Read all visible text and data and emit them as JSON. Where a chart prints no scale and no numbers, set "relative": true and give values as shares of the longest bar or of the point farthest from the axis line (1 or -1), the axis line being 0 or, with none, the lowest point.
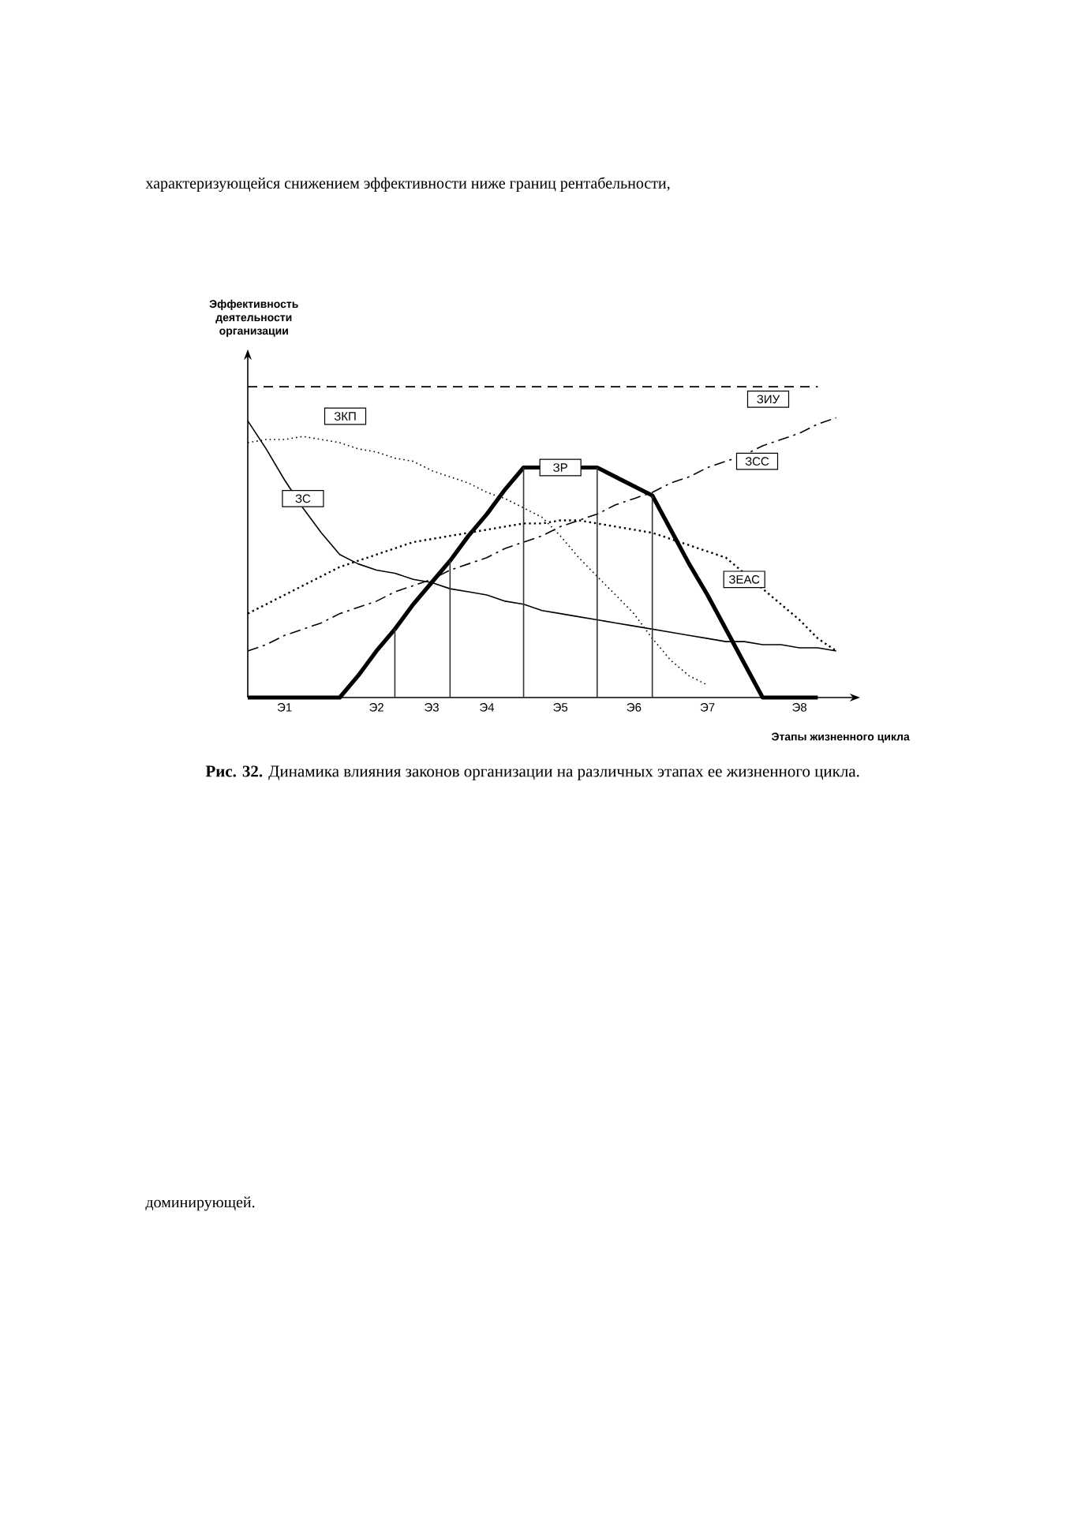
{
  "chart_data": {
    "type": "line",
    "relative": true,
    "ylabel": "Эффективность деятельности организации",
    "xlabel": "Этапы жизненного цикла",
    "annotations": [
      "характеризующейся снижением эффективности ниже границ рентабельности,",
      "**Рис. 32.** Динамика влияния законов организации на различных этапах ее жизненного цикла.",
      "доминирующей."
    ],
    "categories": [
      null,
      null,
      "Э1",
      null,
      null,
      null,
      null,
      "Э2",
      null,
      null,
      "Э3",
      null,
      null,
      "Э4",
      null,
      null,
      null,
      "Э5",
      null,
      null,
      null,
      "Э6",
      null,
      null,
      null,
      "Э7",
      null,
      null,
      null,
      null,
      "Э8",
      null,
      null
    ],
    "marker": "none",
    "series": [
      {
        "name": "ЗР",
        "color": "#000000",
        "line_style": "solid",
        "values": [
          0,
          0,
          0,
          0,
          0,
          0,
          0.07,
          0.15,
          0.22,
          0.3,
          0.37,
          0.44,
          0.52,
          0.59,
          0.67,
          0.74,
          0.74,
          0.74,
          0.74,
          0.74,
          0.71,
          0.68,
          0.65,
          0.54,
          0.43,
          0.33,
          0.22,
          0.11,
          0,
          0,
          0,
          0,
          null
        ]
      },
      {
        "name": "ЗИУ",
        "color": "#000000",
        "line_style": "dashed",
        "values": [
          1,
          1,
          1,
          1,
          1,
          1,
          1,
          1,
          1,
          1,
          1,
          1,
          1,
          1,
          1,
          1,
          1,
          1,
          1,
          1,
          1,
          1,
          1,
          1,
          1,
          1,
          1,
          1,
          1,
          1,
          1,
          1,
          null
        ]
      },
      {
        "name": "ЗСС",
        "color": "#000000",
        "line_style": "dashdot",
        "values": [
          0.15,
          0.17,
          0.2,
          0.22,
          0.24,
          0.27,
          0.29,
          0.31,
          0.34,
          0.36,
          0.38,
          0.41,
          0.43,
          0.45,
          0.48,
          0.5,
          0.52,
          0.55,
          0.57,
          0.59,
          0.62,
          0.64,
          0.66,
          0.69,
          0.71,
          0.74,
          0.76,
          0.78,
          0.81,
          0.83,
          0.85,
          0.88,
          0.9
        ]
      },
      {
        "name": "ЗКП",
        "color": "#000000",
        "line_style": "dotted",
        "values": [
          0.82,
          0.83,
          0.83,
          0.84,
          0.83,
          0.82,
          0.8,
          0.79,
          0.77,
          0.76,
          0.73,
          0.71,
          0.69,
          0.66,
          0.64,
          0.61,
          0.58,
          0.52,
          0.45,
          0.39,
          0.33,
          0.27,
          0.19,
          0.12,
          0.07,
          0.04,
          null,
          null,
          null,
          null,
          null,
          null,
          null
        ]
      },
      {
        "name": "ЗС",
        "color": "#000000",
        "line_style": "solid",
        "values": [
          0.89,
          0.8,
          0.7,
          0.61,
          0.53,
          0.46,
          0.43,
          0.41,
          0.4,
          0.38,
          0.37,
          0.35,
          0.34,
          0.33,
          0.31,
          0.3,
          0.28,
          0.27,
          0.26,
          0.25,
          0.24,
          0.23,
          0.22,
          0.21,
          0.2,
          0.19,
          0.18,
          0.18,
          0.17,
          0.17,
          0.16,
          0.16,
          0.15
        ]
      },
      {
        "name": "ЗЕАС",
        "color": "#000000",
        "line_style": "dotted",
        "values": [
          0.27,
          0.3,
          0.33,
          0.36,
          0.39,
          0.42,
          0.44,
          0.46,
          0.48,
          0.5,
          0.51,
          0.52,
          0.53,
          0.54,
          0.55,
          0.56,
          0.56,
          0.57,
          0.57,
          0.56,
          0.55,
          0.54,
          0.53,
          0.51,
          0.49,
          0.47,
          0.45,
          0.4,
          0.35,
          0.3,
          0.25,
          0.19,
          0.15
        ]
      },
      {
        "type": "bar",
        "color": "#333333",
        "values": [
          null,
          null,
          null,
          null,
          null,
          null,
          null,
          null,
          0.22,
          null,
          null,
          0.44,
          null,
          null,
          null,
          0.74,
          null,
          null,
          null,
          0.74,
          null,
          null,
          0.65,
          null,
          null,
          null,
          null,
          null,
          null,
          null,
          null,
          null,
          null
        ]
      }
    ]
  }
}
